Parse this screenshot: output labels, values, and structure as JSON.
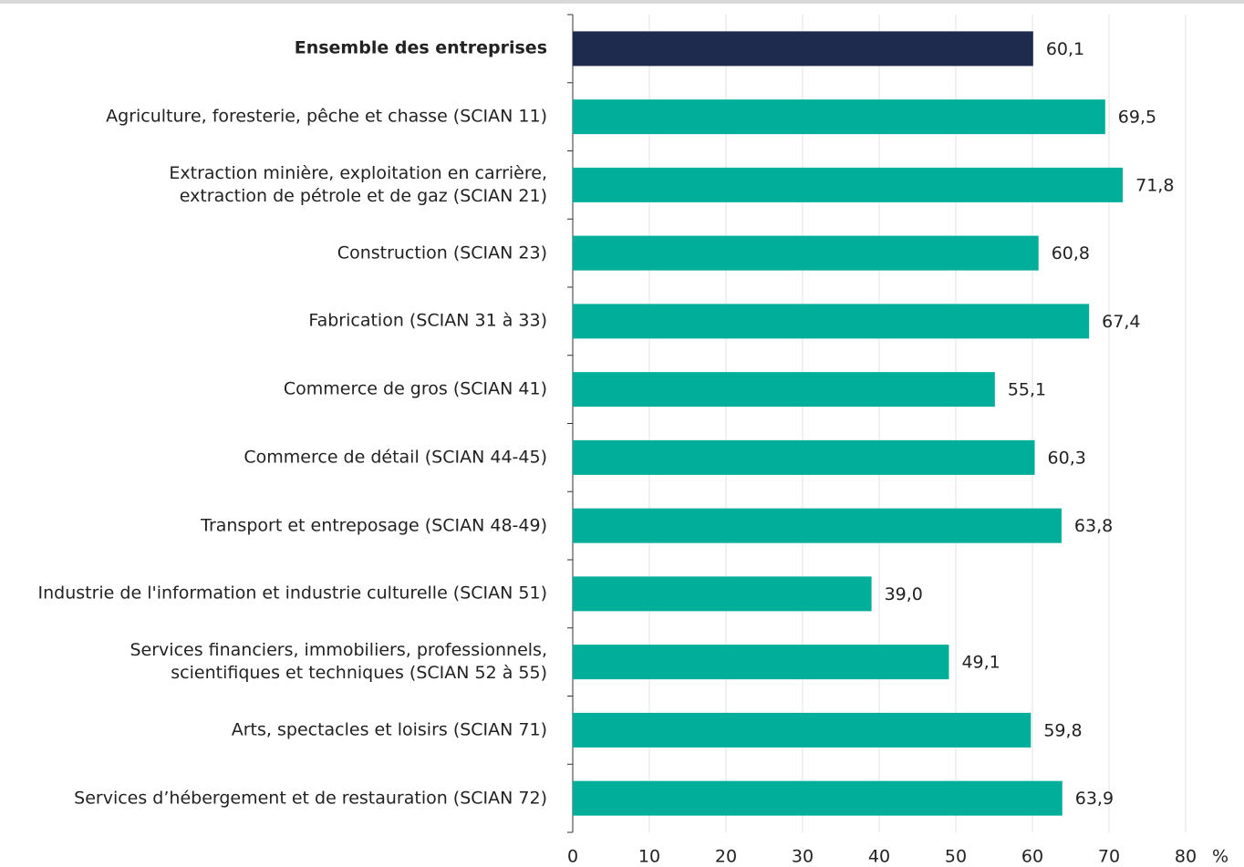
{
  "chart_data": {
    "type": "barh",
    "categories": [
      "Ensemble des entreprises",
      "Agriculture, foresterie, pêche et chasse (SCIAN 11)",
      "Extraction minière, exploitation en carrière,\nextraction de pétrole et de gaz (SCIAN 21)",
      "Construction (SCIAN 23)",
      "Fabrication (SCIAN 31 à 33)",
      "Commerce de gros (SCIAN 41)",
      "Commerce de détail (SCIAN 44-45)",
      "Transport et entreposage (SCIAN 48-49)",
      "Industrie de l'information et industrie culturelle (SCIAN 51)",
      "Services financiers, immobiliers, professionnels,\nscientifiques et techniques (SCIAN 52 à 55)",
      "Arts, spectacles et loisirs (SCIAN 71)",
      "Services d’hébergement et de restauration (SCIAN 72)"
    ],
    "values": [
      60.1,
      69.5,
      71.8,
      60.8,
      67.4,
      55.1,
      60.3,
      63.8,
      39.0,
      49.1,
      59.8,
      63.9
    ],
    "value_labels": [
      "60,1",
      "69,5",
      "71,8",
      "60,8",
      "67,4",
      "55,1",
      "60,3",
      "63,8",
      "39,0",
      "49,1",
      "59,8",
      "63,9"
    ],
    "colors": [
      "#1e2b4f",
      "#00ae9a",
      "#00ae9a",
      "#00ae9a",
      "#00ae9a",
      "#00ae9a",
      "#00ae9a",
      "#00ae9a",
      "#00ae9a",
      "#00ae9a",
      "#00ae9a",
      "#00ae9a"
    ],
    "xlabel": "%",
    "xlim": [
      0,
      80
    ],
    "xticks": [
      0,
      10,
      20,
      30,
      40,
      50,
      60,
      70,
      80
    ],
    "grid": true
  }
}
